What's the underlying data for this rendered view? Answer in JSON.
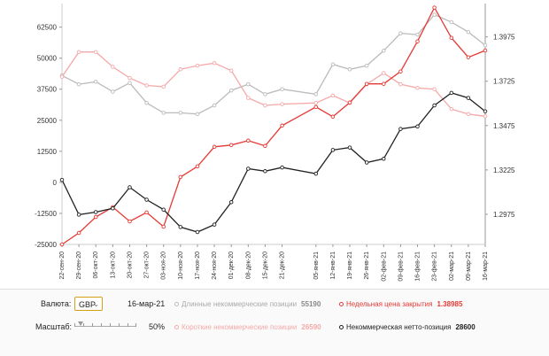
{
  "chart_data": {
    "type": "line",
    "x": [
      "22-сен-20",
      "29-сен-20",
      "06-окт-20",
      "13-окт-20",
      "20-окт-20",
      "27-окт-20",
      "03-ноя-20",
      "10-ноя-20",
      "17-ноя-20",
      "24-ноя-20",
      "01-дек-20",
      "08-дек-20",
      "15-дек-20",
      "21-дек-20",
      "05-янв-21",
      "12-янв-21",
      "19-янв-21",
      "26-янв-21",
      "02-фев-21",
      "09-фев-21",
      "16-фев-21",
      "23-фев-21",
      "02-мар-21",
      "09-мар-21",
      "16-мар-21"
    ],
    "x_positions": [
      0,
      1,
      2,
      3,
      4,
      5,
      6,
      7,
      8,
      9,
      10,
      11,
      12,
      13,
      15,
      16,
      17,
      18,
      19,
      20,
      21,
      22,
      23,
      24,
      25
    ],
    "left_axis": {
      "min": -25000,
      "max": 72000,
      "ticks": [
        62500,
        50000,
        37500,
        25000,
        12500,
        0,
        -12500,
        -25000
      ]
    },
    "right_axis": {
      "min": 1.2805,
      "max": 1.4163,
      "ticks": [
        1.3975,
        1.3725,
        1.3475,
        1.3225,
        1.2975
      ]
    },
    "series": [
      {
        "name": "Длинные некоммерческие позиции",
        "axis": "left",
        "color": "#bbbbbb",
        "values": [
          43000,
          39500,
          40500,
          36500,
          40000,
          32000,
          28000,
          28000,
          27500,
          31000,
          37000,
          39500,
          35500,
          37500,
          35500,
          47500,
          45500,
          47000,
          53000,
          60000,
          59500,
          67500,
          64500,
          60500,
          55190
        ]
      },
      {
        "name": "Короткие некоммерческие позиции",
        "axis": "left",
        "color": "#f4a9a9",
        "values": [
          42500,
          52500,
          52500,
          46500,
          42000,
          39000,
          38500,
          45500,
          47000,
          48000,
          45000,
          34000,
          31000,
          31500,
          32000,
          35000,
          32000,
          39500,
          44000,
          39500,
          38000,
          37500,
          29500,
          27500,
          26590
        ]
      },
      {
        "name": "Недельная цена закрытия",
        "axis": "right",
        "color": "#e53935",
        "values": [
          1.2805,
          1.287,
          1.296,
          1.3015,
          1.2935,
          1.2985,
          1.2905,
          1.3185,
          1.3245,
          1.3355,
          1.3365,
          1.339,
          1.336,
          1.3475,
          1.358,
          1.3525,
          1.3605,
          1.371,
          1.371,
          1.378,
          1.395,
          1.414,
          1.397,
          1.386,
          1.38985
        ]
      },
      {
        "name": "Некоммерческая нетто-позиция",
        "axis": "left",
        "color": "#222222",
        "values": [
          1000,
          -13000,
          -12000,
          -10500,
          -2000,
          -7000,
          -11000,
          -18000,
          -20000,
          -17000,
          -8000,
          5500,
          4500,
          6000,
          3500,
          13000,
          14000,
          8000,
          9500,
          21500,
          22500,
          31000,
          36000,
          34000,
          28600
        ]
      }
    ]
  },
  "controls": {
    "currency_label": "Валюта:",
    "currency_value": "GBP",
    "date": "16-мар-21",
    "scale_label": "Масштаб:",
    "scale_value": "50%"
  },
  "legend": [
    {
      "label": "Длинные некоммерческие позиции",
      "value": "55190",
      "color": "#bbbbbb"
    },
    {
      "label": "Недельная цена закрытия",
      "value": "1.38985",
      "color": "#e53935"
    },
    {
      "label": "Короткие некоммерческие позиции",
      "value": "26590",
      "color": "#f4a9a9"
    },
    {
      "label": "Некоммерческая нетто-позиция",
      "value": "28600",
      "color": "#222222"
    }
  ]
}
